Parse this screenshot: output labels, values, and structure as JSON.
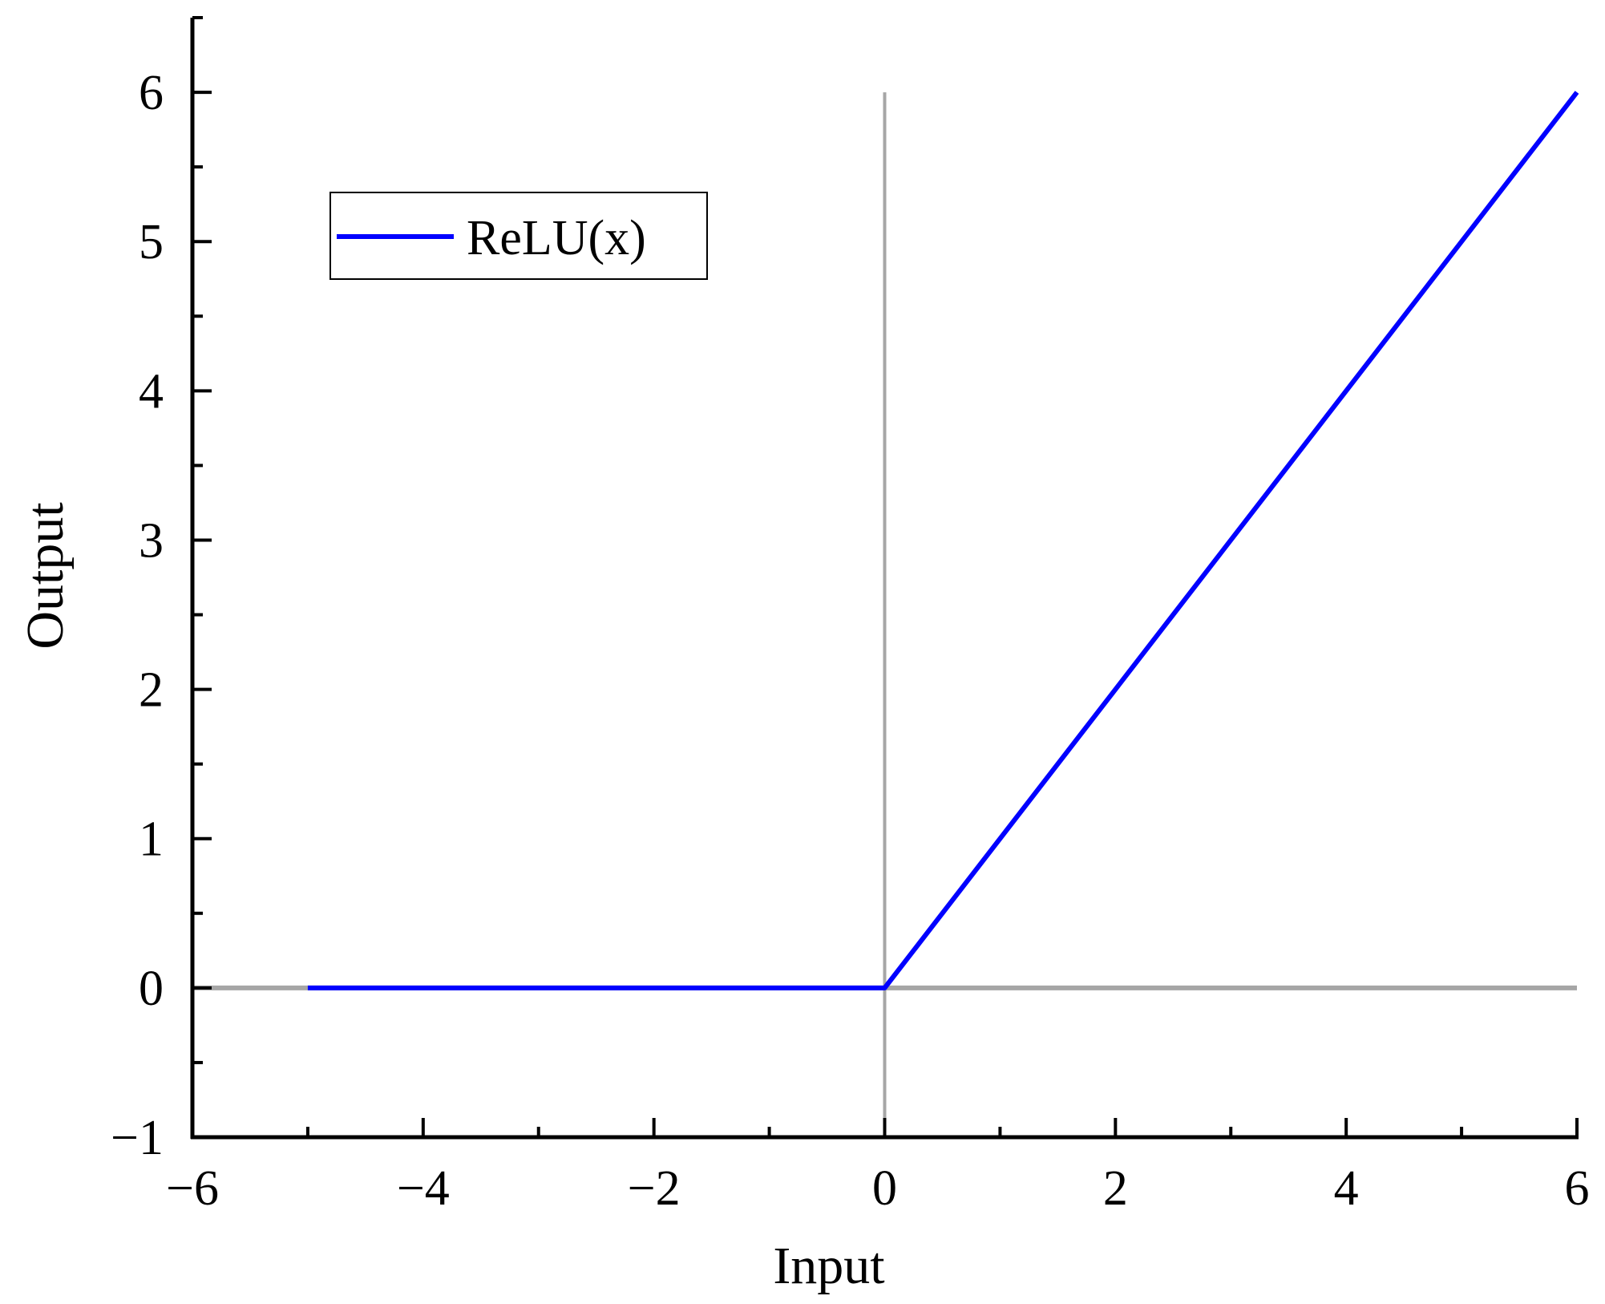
{
  "chart_data": {
    "type": "line",
    "title": "",
    "xlabel": "Input",
    "ylabel": "Output",
    "xlim": [
      -6,
      6
    ],
    "ylim": [
      -1,
      6.5
    ],
    "x_ticks": [
      -6,
      -4,
      -2,
      0,
      2,
      4,
      6
    ],
    "x_tick_labels": [
      "−6",
      "−4",
      "−2",
      "0",
      "2",
      "4",
      "6"
    ],
    "y_ticks": [
      -1,
      0,
      1,
      2,
      3,
      4,
      5,
      6
    ],
    "y_tick_labels": [
      "−1",
      "0",
      "1",
      "2",
      "3",
      "4",
      "5",
      "6"
    ],
    "minor_ticks": true,
    "grid": false,
    "reference_lines": {
      "x0_range": [
        0,
        6
      ],
      "y0_range": [
        -6,
        6
      ],
      "color": "#a6a6a6"
    },
    "series": [
      {
        "name": "ReLU(x)",
        "color": "#0000ff",
        "x": [
          -5,
          0,
          6
        ],
        "y": [
          0,
          0,
          6
        ]
      }
    ],
    "legend": {
      "position": "top-left"
    }
  }
}
